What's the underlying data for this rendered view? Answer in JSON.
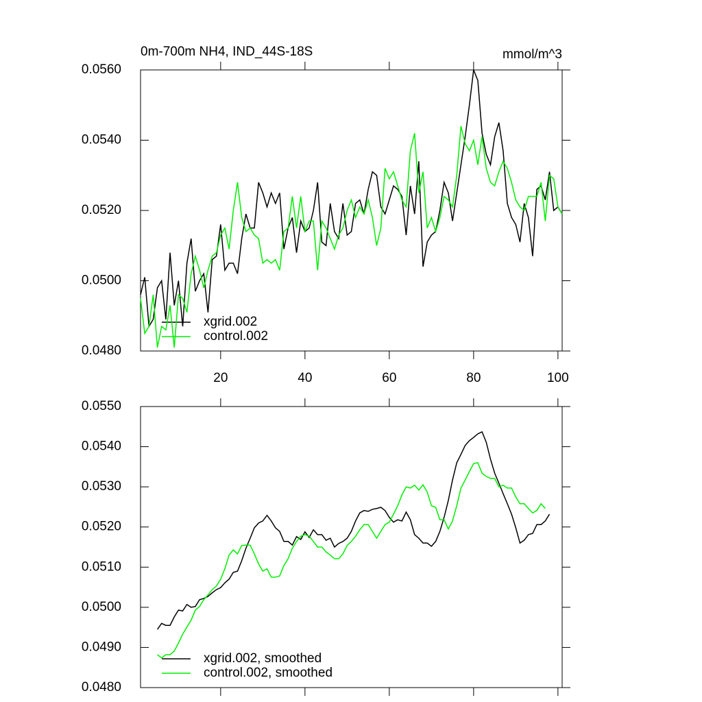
{
  "chart_data": [
    {
      "type": "line",
      "title": "0m-700m NH4, IND_44S-18S",
      "units": "mmol/m^3",
      "x": [
        1,
        2,
        3,
        4,
        5,
        6,
        7,
        8,
        9,
        10,
        11,
        12,
        13,
        14,
        15,
        16,
        17,
        18,
        19,
        20,
        21,
        22,
        23,
        24,
        25,
        26,
        27,
        28,
        29,
        30,
        31,
        32,
        33,
        34,
        35,
        36,
        37,
        38,
        39,
        40,
        41,
        42,
        43,
        44,
        45,
        46,
        47,
        48,
        49,
        50,
        51,
        52,
        53,
        54,
        55,
        56,
        57,
        58,
        59,
        60,
        61,
        62,
        63,
        64,
        65,
        66,
        67,
        68,
        69,
        70,
        71,
        72,
        73,
        74,
        75,
        76,
        77,
        78,
        79,
        80,
        81,
        82,
        83,
        84,
        85,
        86,
        87,
        88,
        89,
        90,
        91,
        92,
        93,
        94,
        95,
        96,
        97,
        98,
        99,
        100,
        101
      ],
      "series": [
        {
          "name": "xgrid.002",
          "color": "#000000",
          "values": [
            0.0496,
            0.0501,
            0.0487,
            0.0489,
            0.0498,
            0.05,
            0.0489,
            0.0508,
            0.0493,
            0.05,
            0.0487,
            0.0505,
            0.0512,
            0.0497,
            0.05,
            0.0502,
            0.0491,
            0.0506,
            0.0507,
            0.0516,
            0.0503,
            0.0505,
            0.0505,
            0.0502,
            0.0512,
            0.0519,
            0.0515,
            0.0515,
            0.0528,
            0.0525,
            0.0521,
            0.0525,
            0.0522,
            0.0525,
            0.0509,
            0.0515,
            0.0518,
            0.0508,
            0.0517,
            0.0514,
            0.0515,
            0.052,
            0.0528,
            0.0511,
            0.051,
            0.0522,
            0.0514,
            0.0512,
            0.0522,
            0.0513,
            0.0514,
            0.0522,
            0.0523,
            0.0519,
            0.0526,
            0.0531,
            0.053,
            0.0521,
            0.0519,
            0.0523,
            0.0527,
            0.0526,
            0.0524,
            0.0513,
            0.0527,
            0.0519,
            0.0534,
            0.0504,
            0.0511,
            0.0513,
            0.0514,
            0.052,
            0.0528,
            0.0525,
            0.0517,
            0.0525,
            0.0533,
            0.0541,
            0.055,
            0.056,
            0.0557,
            0.0542,
            0.0536,
            0.0533,
            0.0541,
            0.0545,
            0.0537,
            0.0522,
            0.0518,
            0.0516,
            0.0511,
            0.0522,
            0.0518,
            0.0507,
            0.0526,
            0.0527,
            0.0523,
            0.0531,
            0.052,
            0.0521,
            0.0519
          ]
        },
        {
          "name": "control.002",
          "color": "#00ee00",
          "values": [
            0.0495,
            0.0485,
            0.0487,
            0.0496,
            0.0481,
            0.0487,
            0.0486,
            0.0493,
            0.0481,
            0.0496,
            0.0495,
            0.0491,
            0.0502,
            0.0507,
            0.0503,
            0.0498,
            0.0503,
            0.0507,
            0.0508,
            0.0513,
            0.0515,
            0.0509,
            0.052,
            0.0528,
            0.0518,
            0.0514,
            0.0515,
            0.0513,
            0.0512,
            0.0505,
            0.0506,
            0.0505,
            0.0506,
            0.0503,
            0.0514,
            0.0515,
            0.0524,
            0.0515,
            0.0524,
            0.0514,
            0.0517,
            0.0517,
            0.0503,
            0.0517,
            0.0515,
            0.0512,
            0.0509,
            0.0513,
            0.0515,
            0.052,
            0.0523,
            0.0518,
            0.0521,
            0.0519,
            0.0523,
            0.0518,
            0.051,
            0.0515,
            0.0532,
            0.0529,
            0.0531,
            0.0527,
            0.0523,
            0.0521,
            0.0537,
            0.0542,
            0.0525,
            0.0531,
            0.0515,
            0.0518,
            0.0514,
            0.0518,
            0.0524,
            0.0523,
            0.0521,
            0.053,
            0.0544,
            0.0539,
            0.0537,
            0.054,
            0.0533,
            0.0541,
            0.0532,
            0.0528,
            0.0527,
            0.0531,
            0.0534,
            0.0532,
            0.0528,
            0.0523,
            0.0521,
            0.052,
            0.0524,
            0.0524,
            0.0524,
            0.0528,
            0.0517,
            0.053,
            0.0529,
            0.0521,
            0.0519
          ]
        }
      ],
      "xlim": [
        1,
        101
      ],
      "ylim": [
        0.048,
        0.056
      ],
      "xticks": [
        20,
        40,
        60,
        80,
        100
      ],
      "yticks": [
        {
          "value": 0.048,
          "label": "0.0480"
        },
        {
          "value": 0.05,
          "label": "0.0500"
        },
        {
          "value": 0.052,
          "label": "0.0520"
        },
        {
          "value": 0.054,
          "label": "0.0540"
        },
        {
          "value": 0.056,
          "label": "0.0560"
        }
      ],
      "legend": "lower left",
      "xtick_labels": true
    },
    {
      "type": "line",
      "x": [
        1,
        2,
        3,
        4,
        5,
        6,
        7,
        8,
        9,
        10,
        11,
        12,
        13,
        14,
        15,
        16,
        17,
        18,
        19,
        20,
        21,
        22,
        23,
        24,
        25,
        26,
        27,
        28,
        29,
        30,
        31,
        32,
        33,
        34,
        35,
        36,
        37,
        38,
        39,
        40,
        41,
        42,
        43,
        44,
        45,
        46,
        47,
        48,
        49,
        50,
        51,
        52,
        53,
        54,
        55,
        56,
        57,
        58,
        59,
        60,
        61,
        62,
        63,
        64,
        65,
        66,
        67,
        68,
        69,
        70,
        71,
        72,
        73,
        74,
        75,
        76,
        77,
        78,
        79,
        80,
        81,
        82,
        83,
        84,
        85,
        86,
        87,
        88,
        89,
        90,
        91,
        92,
        93,
        94,
        95,
        96,
        97,
        98,
        99,
        100,
        101
      ],
      "series": [
        {
          "name": "xgrid.002, smoothed",
          "color": "#000000",
          "values": [
            null,
            null,
            null,
            null,
            0.04945,
            0.0496,
            0.04955,
            0.04955,
            0.04976,
            0.04993,
            0.04991,
            0.05007,
            0.05,
            0.05002,
            0.05019,
            0.05022,
            0.05027,
            0.05036,
            0.05044,
            0.05049,
            0.05061,
            0.0507,
            0.05087,
            0.0509,
            0.05116,
            0.05147,
            0.05172,
            0.05198,
            0.0521,
            0.05215,
            0.05229,
            0.05215,
            0.05198,
            0.05189,
            0.05164,
            0.05164,
            0.05155,
            0.05176,
            0.05169,
            0.05188,
            0.05174,
            0.05193,
            0.05181,
            0.05181,
            0.05167,
            0.05172,
            0.0515,
            0.05159,
            0.05164,
            0.05172,
            0.05189,
            0.05215,
            0.05235,
            0.05241,
            0.05239,
            0.05244,
            0.05246,
            0.05249,
            0.05241,
            0.05224,
            0.05212,
            0.05218,
            0.05215,
            0.05237,
            0.05218,
            0.05181,
            0.05172,
            0.0516,
            0.0516,
            0.05152,
            0.05164,
            0.05189,
            0.05224,
            0.05266,
            0.05317,
            0.0536,
            0.05381,
            0.05403,
            0.05415,
            0.05423,
            0.05432,
            0.05437,
            0.05411,
            0.05369,
            0.05334,
            0.05309,
            0.05283,
            0.05258,
            0.05232,
            0.05198,
            0.0516,
            0.05167,
            0.05181,
            0.05184,
            0.05206,
            0.05206,
            0.05215,
            0.05232,
            null,
            null,
            null
          ]
        },
        {
          "name": "control.002, smoothed",
          "color": "#00ee00",
          "values": [
            null,
            null,
            null,
            null,
            0.04882,
            0.04874,
            0.04882,
            0.04882,
            0.04891,
            0.04911,
            0.04933,
            0.04951,
            0.04968,
            0.04993,
            0.05002,
            0.05019,
            0.05031,
            0.05044,
            0.05053,
            0.0507,
            0.05096,
            0.0513,
            0.05143,
            0.05133,
            0.05154,
            0.05155,
            0.05155,
            0.05133,
            0.05108,
            0.0509,
            0.05096,
            0.05075,
            0.05075,
            0.05078,
            0.05104,
            0.05121,
            0.05147,
            0.05164,
            0.05177,
            0.05181,
            0.05177,
            0.05164,
            0.0515,
            0.0515,
            0.05138,
            0.0513,
            0.05121,
            0.05121,
            0.05133,
            0.05154,
            0.05164,
            0.05177,
            0.05193,
            0.05206,
            0.05206,
            0.05189,
            0.05172,
            0.05189,
            0.05206,
            0.05212,
            0.05232,
            0.05253,
            0.0528,
            0.053,
            0.05297,
            0.05304,
            0.05292,
            0.05305,
            0.05287,
            0.05253,
            0.05249,
            0.05218,
            0.05218,
            0.05195,
            0.05215,
            0.05253,
            0.05297,
            0.05317,
            0.05338,
            0.05358,
            0.0536,
            0.05334,
            0.05326,
            0.05321,
            0.05321,
            0.053,
            0.05304,
            0.05297,
            0.05297,
            0.05275,
            0.05258,
            0.05258,
            0.05246,
            0.05235,
            0.05241,
            0.05258,
            0.05246,
            null,
            null,
            null,
            null
          ]
        }
      ],
      "xlim": [
        1,
        101
      ],
      "ylim": [
        0.048,
        0.055
      ],
      "xticks": [
        20,
        40,
        60,
        80,
        100
      ],
      "yticks": [
        {
          "value": 0.048,
          "label": "0.0480"
        },
        {
          "value": 0.049,
          "label": "0.0490"
        },
        {
          "value": 0.05,
          "label": "0.0500"
        },
        {
          "value": 0.051,
          "label": "0.0510"
        },
        {
          "value": 0.052,
          "label": "0.0520"
        },
        {
          "value": 0.053,
          "label": "0.0530"
        },
        {
          "value": 0.054,
          "label": "0.0540"
        },
        {
          "value": 0.055,
          "label": "0.0550"
        }
      ],
      "legend": "lower left",
      "xtick_labels": false
    }
  ]
}
